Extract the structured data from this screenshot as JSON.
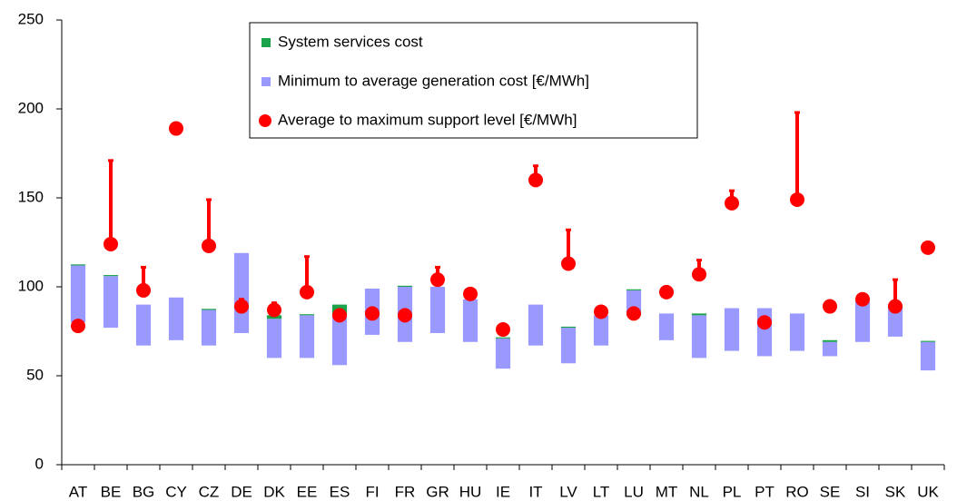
{
  "chart_data": {
    "type": "floating-bar",
    "categories": [
      "AT",
      "BE",
      "BG",
      "CY",
      "CZ",
      "DE",
      "DK",
      "EE",
      "ES",
      "FI",
      "FR",
      "GR",
      "HU",
      "IE",
      "IT",
      "LV",
      "LT",
      "LU",
      "MT",
      "NL",
      "PL",
      "PT",
      "RO",
      "SE",
      "SI",
      "SK",
      "UK"
    ],
    "series": [
      {
        "name": "Minimum to average generation cost [€/MWh]",
        "color": "#9999ff",
        "low": [
          80,
          77,
          67,
          70,
          67,
          74,
          60,
          60,
          56,
          73,
          69,
          74,
          69,
          54,
          67,
          57,
          67,
          84,
          70,
          60,
          64,
          61,
          64,
          61,
          69,
          72,
          53
        ],
        "values": [
          112,
          106,
          90,
          94,
          87,
          119,
          82,
          84,
          84,
          99,
          100,
          100,
          93,
          71,
          90,
          77,
          84,
          98,
          85,
          84,
          88,
          88,
          85,
          69,
          92,
          90,
          69
        ]
      },
      {
        "name": "System services cost",
        "color": "#1aa34a",
        "values": [
          0.6,
          0.6,
          0,
          0,
          0.6,
          0,
          2,
          0.6,
          6,
          0,
          0.6,
          0,
          0,
          0.6,
          0,
          0.6,
          0,
          0.6,
          0,
          1,
          0,
          0,
          0,
          1,
          0,
          0,
          0.6
        ]
      },
      {
        "name": "Average to maximum support level [€/MWh]",
        "color": "#ff0000",
        "values": [
          78,
          124,
          98,
          189,
          123,
          89,
          87,
          97,
          84,
          85,
          84,
          104,
          96,
          76,
          160,
          113,
          86,
          85,
          97,
          107,
          147,
          80,
          149,
          89,
          93,
          89,
          122
        ],
        "high": [
          null,
          171,
          111,
          null,
          149,
          93,
          91,
          117,
          null,
          null,
          null,
          111,
          null,
          null,
          168,
          132,
          null,
          null,
          null,
          115,
          154,
          null,
          198,
          null,
          null,
          104,
          null
        ]
      }
    ],
    "ylim": [
      0,
      250
    ],
    "yticks": [
      0,
      50,
      100,
      150,
      200,
      250
    ]
  }
}
